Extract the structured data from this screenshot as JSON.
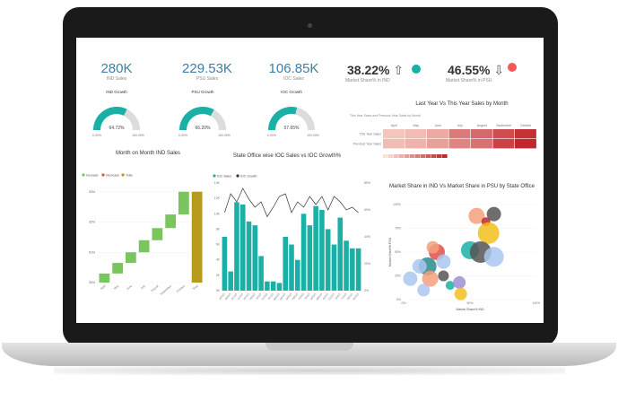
{
  "kpis": [
    {
      "value": "280K",
      "label": "IND Sales"
    },
    {
      "value": "229.53K",
      "label": "PSU Sales"
    },
    {
      "value": "106.85K",
      "label": "IOC Sales"
    }
  ],
  "share_kpis": [
    {
      "value": "38.22%",
      "arrow": "⇧",
      "label": "Market Share% in IND",
      "color": "#1ab0a6"
    },
    {
      "value": "46.55%",
      "arrow": "⇩",
      "label": "Market Share% in PSU",
      "color": "#f25a5a"
    }
  ],
  "gauges": [
    {
      "title": "IND Growth",
      "value_label": "64.72%",
      "min": "0.00%",
      "max": "100.00%",
      "fraction": 0.6472
    },
    {
      "title": "PSU Growth",
      "value_label": "66.20%",
      "min": "0.00%",
      "max": "100.00%",
      "fraction": 0.662
    },
    {
      "title": "IOC Growth",
      "value_label": "57.65%",
      "min": "0.00%",
      "max": "100.00%",
      "fraction": 0.5765
    }
  ],
  "colors": {
    "teal": "#1ab0a6",
    "green": "#7bc55f",
    "gold": "#b59a1c",
    "red": "#c0272d"
  },
  "chart_data": [
    {
      "type": "waterfall",
      "title": "Month on Month IND Sales",
      "legend": [
        "Increase",
        "Decrease",
        "Total"
      ],
      "legend_colors": [
        "#7bc55f",
        "#e0504a",
        "#b59a1c"
      ],
      "y_ticks": [
        "$0M",
        "$1M",
        "$2M",
        "$3M"
      ],
      "categories": [
        "April",
        "May",
        "June",
        "July",
        "August",
        "September",
        "October",
        "Total"
      ],
      "increments": [
        0.3,
        0.35,
        0.35,
        0.4,
        0.4,
        0.45,
        0.75,
        0
      ],
      "total": 3.0,
      "ylim": [
        0,
        3.2
      ]
    },
    {
      "type": "bar+line",
      "title": "State Office wise IOC Sales vs IOC Growth%",
      "legend": [
        "IOC Sales",
        "IOC Growth"
      ],
      "y_ticks_left": [
        "0K",
        "2K",
        "4K",
        "6K",
        "8K",
        "10K",
        "12K",
        "14K"
      ],
      "y_ticks_right": [
        "0%",
        "20%",
        "40%",
        "60%",
        "80%"
      ],
      "categories": [
        "APSO",
        "BRSO",
        "DLSO",
        "GJSO",
        "HPSO",
        "HRSO",
        "JKSO",
        "KASO",
        "KLSO",
        "MHSO",
        "MPSO",
        "ORSO",
        "PBSO",
        "RJSO",
        "TNSO",
        "UPSO",
        "WBSO",
        "ASSO",
        "CGSO",
        "JHSO",
        "TSSO",
        "UKSO",
        "MZSO"
      ],
      "bars": [
        7,
        2.5,
        11.5,
        11.2,
        9,
        8.5,
        4.5,
        1.2,
        1.2,
        1,
        7,
        6,
        4,
        10,
        8.5,
        11,
        10.5,
        8,
        6,
        9.5,
        6.5,
        5.5,
        5.5
      ],
      "growth": [
        58,
        72,
        66,
        76,
        68,
        62,
        66,
        55,
        62,
        70,
        72,
        58,
        66,
        62,
        70,
        64,
        70,
        60,
        70,
        66,
        60,
        62,
        58
      ],
      "ylim": [
        0,
        14
      ],
      "y2lim": [
        0,
        80
      ]
    },
    {
      "type": "heatmap",
      "title": "Last Year Vs This Year Sales by Month",
      "subtitle": "This Year Sales and Previous Year Sales by Month",
      "columns": [
        "April",
        "May",
        "June",
        "July",
        "August",
        "September",
        "October"
      ],
      "rows": [
        "This Year Sales",
        "Previous Year Sales"
      ],
      "values": [
        [
          0.15,
          0.2,
          0.3,
          0.55,
          0.65,
          0.8,
          0.95
        ],
        [
          0.2,
          0.25,
          0.35,
          0.5,
          0.6,
          0.85,
          1.0
        ]
      ]
    },
    {
      "type": "scatter",
      "title": "Market Share in IND Vs Market Share in PSU by State Office",
      "xlabel": "Market Share% IND",
      "ylabel": "Market Share% PSU",
      "y_ticks": [
        "0%",
        "25%",
        "50%",
        "75%",
        "100%"
      ],
      "x_ticks": [
        "0%",
        "50%",
        "100%"
      ],
      "points": [
        {
          "x": 0.55,
          "y": 0.88,
          "r": 9,
          "color": "#f5a07a"
        },
        {
          "x": 0.68,
          "y": 0.9,
          "r": 8,
          "color": "#555555"
        },
        {
          "x": 0.62,
          "y": 0.82,
          "r": 5,
          "color": "#c0272d"
        },
        {
          "x": 0.64,
          "y": 0.7,
          "r": 12,
          "color": "#f2c01e"
        },
        {
          "x": 0.5,
          "y": 0.52,
          "r": 10,
          "color": "#1ab0a6"
        },
        {
          "x": 0.58,
          "y": 0.5,
          "r": 12,
          "color": "#555555"
        },
        {
          "x": 0.68,
          "y": 0.45,
          "r": 11,
          "color": "#a9c7f0"
        },
        {
          "x": 0.25,
          "y": 0.5,
          "r": 9,
          "color": "#e0504a"
        },
        {
          "x": 0.18,
          "y": 0.35,
          "r": 10,
          "color": "#2a8a8a"
        },
        {
          "x": 0.12,
          "y": 0.35,
          "r": 8,
          "color": "#a9c7f0"
        },
        {
          "x": 0.3,
          "y": 0.4,
          "r": 8,
          "color": "#a9c7f0"
        },
        {
          "x": 0.2,
          "y": 0.22,
          "r": 9,
          "color": "#f5a07a"
        },
        {
          "x": 0.3,
          "y": 0.25,
          "r": 6,
          "color": "#555555"
        },
        {
          "x": 0.35,
          "y": 0.15,
          "r": 5,
          "color": "#1ab0a6"
        },
        {
          "x": 0.42,
          "y": 0.18,
          "r": 7,
          "color": "#9c8fd6"
        },
        {
          "x": 0.43,
          "y": 0.06,
          "r": 7,
          "color": "#f2c01e"
        },
        {
          "x": 0.05,
          "y": 0.22,
          "r": 8,
          "color": "#a9c7f0"
        },
        {
          "x": 0.15,
          "y": 0.1,
          "r": 7,
          "color": "#a9c7f0"
        },
        {
          "x": 0.22,
          "y": 0.55,
          "r": 7,
          "color": "#f5a07a"
        }
      ]
    }
  ]
}
